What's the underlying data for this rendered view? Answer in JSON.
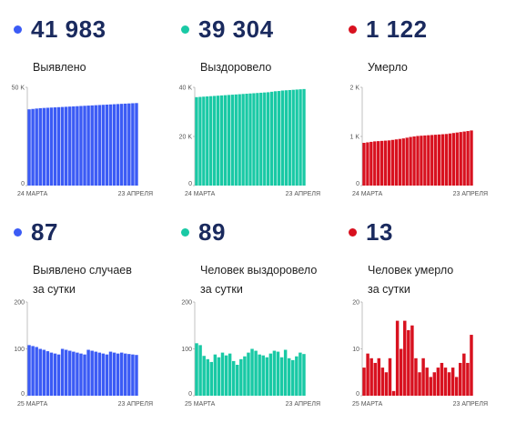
{
  "panels": [
    {
      "value": "41 983",
      "label": "Выявлено",
      "color": "#3b5bf5",
      "chart_data": {
        "type": "bar",
        "x_start": "24 МАРТА",
        "x_end": "23 АПРЕЛЯ",
        "yticks": [
          {
            "v": 0,
            "t": "0"
          },
          {
            "v": 50000,
            "t": "50 K"
          }
        ],
        "ylim": [
          0,
          50000
        ],
        "values": [
          38800,
          39000,
          39200,
          39400,
          39500,
          39600,
          39700,
          39800,
          39900,
          40000,
          40100,
          40200,
          40300,
          40400,
          40500,
          40600,
          40700,
          40800,
          40900,
          41000,
          41100,
          41200,
          41300,
          41400,
          41500,
          41600,
          41700,
          41800,
          41900,
          41983
        ]
      }
    },
    {
      "value": "39 304",
      "label": "Выздоровело",
      "color": "#19c9a5",
      "chart_data": {
        "type": "bar",
        "x_start": "24 МАРТА",
        "x_end": "23 АПРЕЛЯ",
        "yticks": [
          {
            "v": 0,
            "t": "0"
          },
          {
            "v": 20000,
            "t": "20 K"
          },
          {
            "v": 40000,
            "t": "40 K"
          }
        ],
        "ylim": [
          0,
          40000
        ],
        "values": [
          36000,
          36100,
          36200,
          36300,
          36400,
          36500,
          36600,
          36700,
          36800,
          36900,
          37000,
          37100,
          37200,
          37300,
          37400,
          37500,
          37600,
          37700,
          37800,
          37900,
          38000,
          38200,
          38400,
          38500,
          38700,
          38800,
          38900,
          39000,
          39100,
          39200,
          39304
        ]
      }
    },
    {
      "value": "1 122",
      "label": "Умерло",
      "color": "#d8111f",
      "chart_data": {
        "type": "bar",
        "x_start": "24 МАРТА",
        "x_end": "23 АПРЕЛЯ",
        "yticks": [
          {
            "v": 0,
            "t": "0"
          },
          {
            "v": 1000,
            "t": "1 K"
          },
          {
            "v": 2000,
            "t": "2 K"
          }
        ],
        "ylim": [
          0,
          2000
        ],
        "values": [
          870,
          880,
          890,
          900,
          905,
          910,
          915,
          920,
          930,
          940,
          950,
          960,
          975,
          990,
          1000,
          1010,
          1015,
          1020,
          1025,
          1030,
          1035,
          1040,
          1045,
          1050,
          1060,
          1070,
          1080,
          1090,
          1100,
          1110,
          1122
        ]
      }
    },
    {
      "value": "87",
      "label": "Выявлено случаев\nза сутки",
      "color": "#3b5bf5",
      "chart_data": {
        "type": "bar",
        "x_start": "25 МАРТА",
        "x_end": "23 АПРЕЛЯ",
        "yticks": [
          {
            "v": 0,
            "t": "0"
          },
          {
            "v": 100,
            "t": "100"
          },
          {
            "v": 200,
            "t": "200"
          }
        ],
        "ylim": [
          0,
          200
        ],
        "values": [
          108,
          106,
          104,
          100,
          98,
          95,
          92,
          90,
          88,
          100,
          98,
          96,
          94,
          92,
          90,
          88,
          98,
          96,
          94,
          92,
          90,
          88,
          94,
          92,
          90,
          92,
          90,
          89,
          88,
          87
        ]
      }
    },
    {
      "value": "89",
      "label": "Человек выздоровело\nза сутки",
      "color": "#19c9a5",
      "chart_data": {
        "type": "bar",
        "x_start": "25 МАРТА",
        "x_end": "23 АПРЕЛЯ",
        "yticks": [
          {
            "v": 0,
            "t": "0"
          },
          {
            "v": 100,
            "t": "100"
          },
          {
            "v": 200,
            "t": "200"
          }
        ],
        "ylim": [
          0,
          200
        ],
        "values": [
          112,
          108,
          85,
          78,
          72,
          88,
          82,
          92,
          86,
          90,
          74,
          66,
          78,
          84,
          92,
          100,
          96,
          88,
          86,
          82,
          90,
          96,
          94,
          82,
          98,
          80,
          76,
          84,
          92,
          89
        ]
      }
    },
    {
      "value": "13",
      "label": "Человек умерло\nза сутки",
      "color": "#d8111f",
      "chart_data": {
        "type": "bar",
        "x_start": "25 МАРТА",
        "x_end": "23 АПРЕЛЯ",
        "yticks": [
          {
            "v": 0,
            "t": "0"
          },
          {
            "v": 10,
            "t": "10"
          },
          {
            "v": 20,
            "t": "20"
          }
        ],
        "ylim": [
          0,
          20
        ],
        "values": [
          6,
          9,
          8,
          7,
          8,
          6,
          5,
          8,
          1,
          16,
          10,
          16,
          14,
          15,
          8,
          5,
          8,
          6,
          4,
          5,
          6,
          7,
          6,
          5,
          6,
          4,
          7,
          9,
          7,
          13
        ]
      }
    }
  ]
}
